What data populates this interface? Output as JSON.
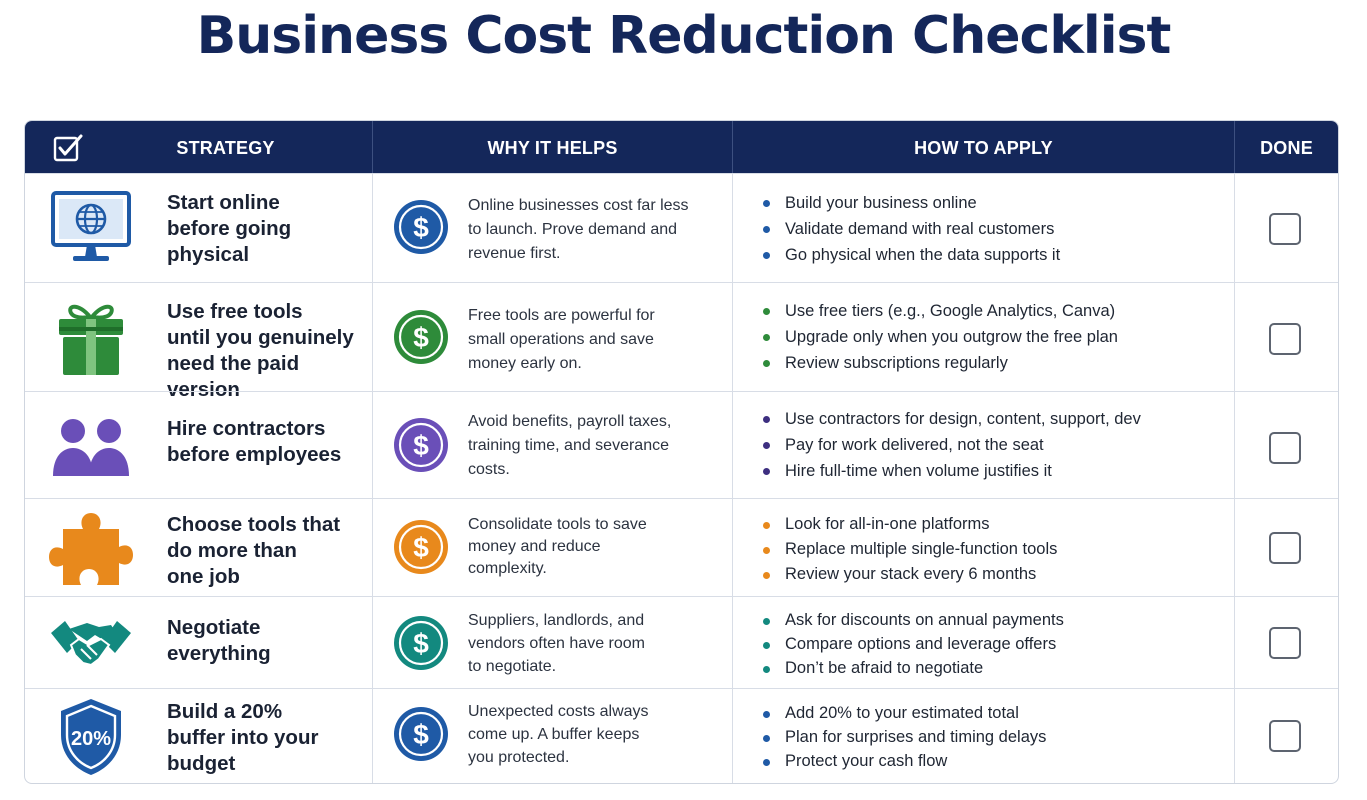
{
  "title": "Business Cost Reduction Checklist",
  "headers": {
    "strategy": "STRATEGY",
    "why": "WHY IT HELPS",
    "how": "HOW TO APPLY",
    "done": "DONE"
  },
  "colors": {
    "navy": "#14275a",
    "blue": "#1f5aa6",
    "green": "#2e8b3a",
    "purple": "#6a4fb8",
    "orange": "#e8891c",
    "teal": "#13897f"
  },
  "rows": [
    {
      "icon": "computer-globe-icon",
      "strategy": [
        "Start online",
        "before going",
        "physical"
      ],
      "why": [
        "Online businesses cost far less",
        "to launch. Prove demand and",
        "revenue first."
      ],
      "how": [
        "Build your business online",
        "Validate demand with real customers",
        "Go physical when the data supports it"
      ],
      "color": "#1f5aa6",
      "done": false
    },
    {
      "icon": "gift-icon",
      "strategy": [
        "Use free tools",
        "until you genuinely",
        "need the paid version"
      ],
      "why": [
        "Free tools are powerful for",
        "small operations and save",
        "money early on."
      ],
      "how": [
        "Use free tiers (e.g., Google Analytics, Canva)",
        "Upgrade only when you outgrow the free plan",
        "Review subscriptions regularly"
      ],
      "color": "#2e8b3a",
      "done": false
    },
    {
      "icon": "people-icon",
      "strategy": [
        "Hire contractors",
        "before employees"
      ],
      "why": [
        "Avoid benefits, payroll taxes,",
        "training time, and severance",
        "costs."
      ],
      "how": [
        "Use contractors for design, content, support, dev",
        "Pay for work delivered, not the seat",
        "Hire full-time when volume justifies it"
      ],
      "color": "#6a4fb8",
      "done": false
    },
    {
      "icon": "puzzle-piece-icon",
      "strategy": [
        "Choose tools that",
        "do more than",
        "one job"
      ],
      "why": [
        "Consolidate tools to save",
        "money and reduce",
        "complexity."
      ],
      "how": [
        "Look for all-in-one platforms",
        "Replace multiple single-function tools",
        "Review your stack every 6 months"
      ],
      "color": "#e8891c",
      "done": false
    },
    {
      "icon": "handshake-icon",
      "strategy": [
        "Negotiate",
        "everything"
      ],
      "why": [
        "Suppliers, landlords, and",
        "vendors often have room",
        "to negotiate."
      ],
      "how": [
        "Ask for discounts on annual payments",
        "Compare options and leverage offers",
        "Don’t be afraid to negotiate"
      ],
      "color": "#13897f",
      "done": false
    },
    {
      "icon": "shield-icon",
      "icon_text": "20%",
      "strategy": [
        "Build a 20%",
        "buffer into your",
        "budget"
      ],
      "why": [
        "Unexpected costs always",
        "come up. A buffer keeps",
        "you protected."
      ],
      "how": [
        "Add 20% to your estimated total",
        "Plan for surprises and timing delays",
        "Protect your cash flow"
      ],
      "color": "#1f5aa6",
      "done": false
    }
  ],
  "coin_symbol": "$"
}
